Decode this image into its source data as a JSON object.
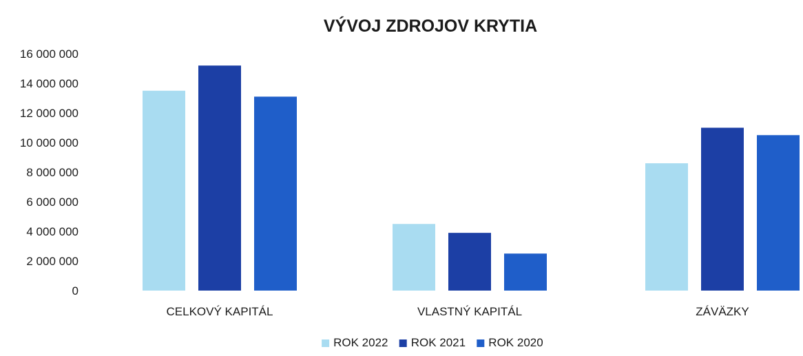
{
  "chart_data": {
    "type": "bar",
    "title": "VÝVOJ ZDROJOV KRYTIA",
    "xlabel": "",
    "ylabel": "",
    "categories": [
      "CELKOVÝ KAPITÁL",
      "VLASTNÝ KAPITÁL",
      "ZÁVÄZKY"
    ],
    "series": [
      {
        "name": "ROK 2022",
        "values": [
          13500000,
          4500000,
          8600000
        ],
        "color": "#a9dcf1"
      },
      {
        "name": "ROK 2021",
        "values": [
          15200000,
          3900000,
          11000000
        ],
        "color": "#1c3fa5"
      },
      {
        "name": "ROK 2020",
        "values": [
          13100000,
          2500000,
          10500000
        ],
        "color": "#1f5ec9"
      }
    ],
    "ylim": [
      0,
      16000000
    ],
    "y_ticks": [
      {
        "value": 0,
        "label": "0"
      },
      {
        "value": 2000000,
        "label": "2 000 000"
      },
      {
        "value": 4000000,
        "label": "4 000 000"
      },
      {
        "value": 6000000,
        "label": "6 000 000"
      },
      {
        "value": 8000000,
        "label": "8 000 000"
      },
      {
        "value": 10000000,
        "label": "10 000 000"
      },
      {
        "value": 12000000,
        "label": "12 000 000"
      },
      {
        "value": 14000000,
        "label": "14 000 000"
      },
      {
        "value": 16000000,
        "label": "16 000 000"
      }
    ],
    "grid": false,
    "legend_position": "bottom-center"
  }
}
